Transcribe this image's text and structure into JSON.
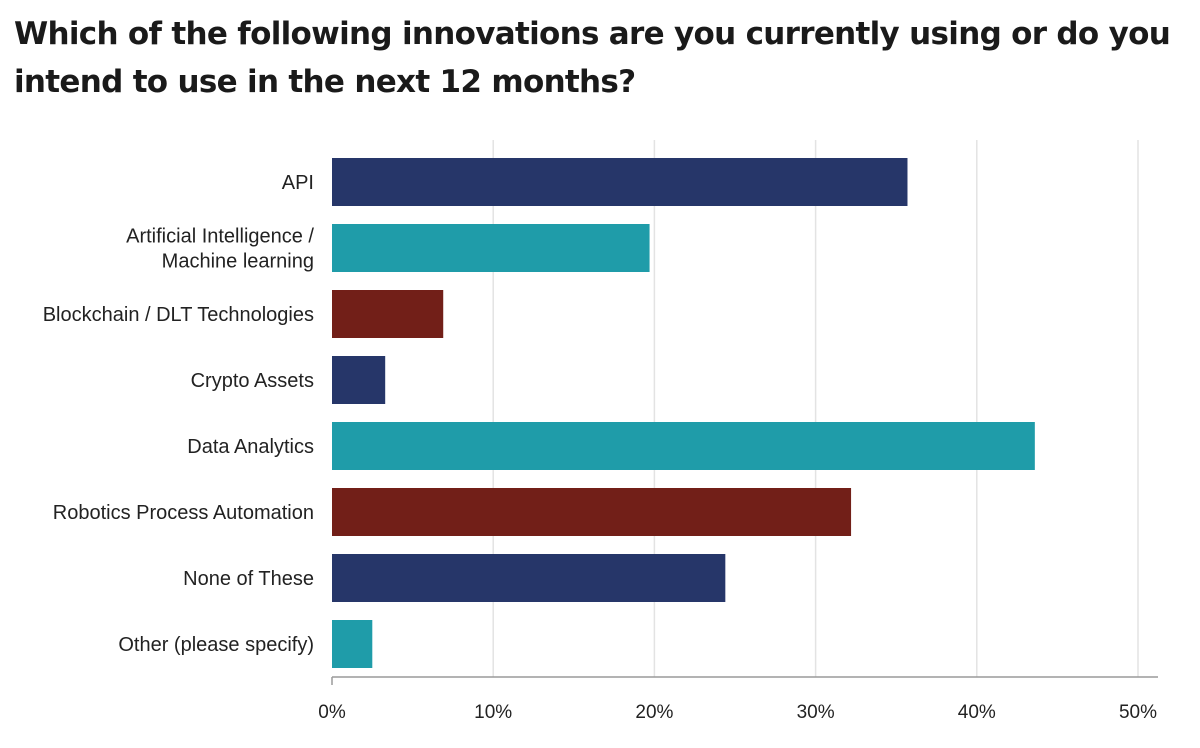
{
  "chart_data": {
    "type": "bar",
    "orientation": "horizontal",
    "title": "Which of the following innovations are you currently using or do you intend to use in the next 12 months?",
    "xlabel": "",
    "ylabel": "",
    "xlim": [
      0,
      50
    ],
    "x_ticks": [
      "0%",
      "10%",
      "20%",
      "30%",
      "40%",
      "50%"
    ],
    "grid": "vertical",
    "legend": "none",
    "categories": [
      [
        "API"
      ],
      [
        "Artificial Intelligence /",
        "Machine learning"
      ],
      [
        "Blockchain / DLT Technologies"
      ],
      [
        "Crypto Assets"
      ],
      [
        "Data Analytics"
      ],
      [
        "Robotics Process Automation"
      ],
      [
        "None of These"
      ],
      [
        "Other (please specify)"
      ]
    ],
    "values": [
      35.7,
      19.7,
      6.9,
      3.3,
      43.6,
      32.2,
      24.4,
      2.5
    ],
    "colors": [
      "#263669",
      "#1f9ca9",
      "#721f18",
      "#263669",
      "#1f9ca9",
      "#721f18",
      "#263669",
      "#1f9ca9"
    ],
    "gridline_color": "#e3e3e3",
    "axis_color": "#9a9a9a"
  }
}
